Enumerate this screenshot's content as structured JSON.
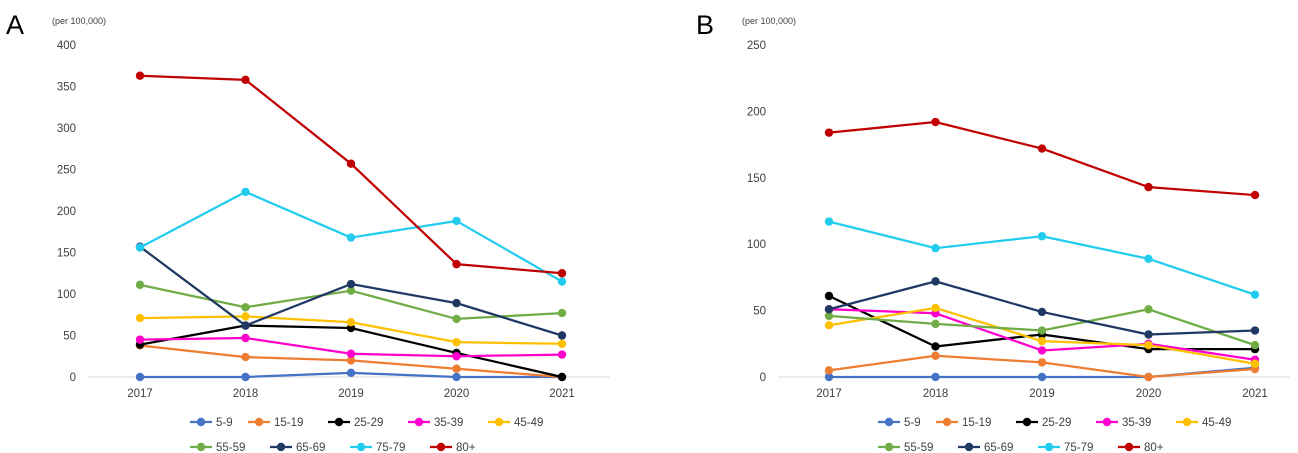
{
  "panels": [
    {
      "letter": "A",
      "unit_label": "(per 100,000)",
      "chart_data": {
        "type": "line",
        "title": "",
        "xlabel": "",
        "ylabel": "(per 100,000)",
        "categories": [
          "2017",
          "2018",
          "2019",
          "2020",
          "2021"
        ],
        "ylim": [
          0,
          400
        ],
        "yticks": [
          0,
          50,
          100,
          150,
          200,
          250,
          300,
          350,
          400
        ],
        "grid": false,
        "legend": "bottom",
        "series": [
          {
            "name": "5-9",
            "color": "#4472C4",
            "values": [
              0,
              0,
              5,
              0,
              0
            ]
          },
          {
            "name": "15-19",
            "color": "#ED7D31",
            "values": [
              38,
              24,
              20,
              10,
              0
            ]
          },
          {
            "name": "25-29",
            "color": "#000000",
            "values": [
              39,
              62,
              59,
              29,
              0
            ]
          },
          {
            "name": "35-39",
            "color": "#FF00CC",
            "values": [
              45,
              47,
              28,
              25,
              27
            ]
          },
          {
            "name": "45-49",
            "color": "#FFC000",
            "values": [
              71,
              73,
              66,
              42,
              40
            ]
          },
          {
            "name": "55-59",
            "color": "#70AD47",
            "values": [
              111,
              84,
              104,
              70,
              77
            ]
          },
          {
            "name": "65-69",
            "color": "#203864",
            "values": [
              157,
              62,
              112,
              89,
              50
            ]
          },
          {
            "name": "75-79",
            "color": "#22CCEE",
            "values": [
              156,
              223,
              168,
              188,
              115
            ]
          },
          {
            "name": "80+",
            "color": "#C00000",
            "values": [
              363,
              358,
              257,
              136,
              125
            ]
          }
        ]
      }
    },
    {
      "letter": "B",
      "unit_label": "(per 100,000)",
      "chart_data": {
        "type": "line",
        "title": "",
        "xlabel": "",
        "ylabel": "(per 100,000)",
        "categories": [
          "2017",
          "2018",
          "2019",
          "2020",
          "2021"
        ],
        "ylim": [
          0,
          250
        ],
        "yticks": [
          0,
          50,
          100,
          150,
          200,
          250
        ],
        "grid": false,
        "legend": "bottom",
        "series": [
          {
            "name": "5-9",
            "color": "#4472C4",
            "values": [
              0,
              0,
              0,
              0,
              7
            ]
          },
          {
            "name": "15-19",
            "color": "#ED7D31",
            "values": [
              5,
              16,
              11,
              0,
              6
            ]
          },
          {
            "name": "25-29",
            "color": "#000000",
            "values": [
              61,
              23,
              32,
              21,
              21
            ]
          },
          {
            "name": "35-39",
            "color": "#FF00CC",
            "values": [
              51,
              48,
              20,
              25,
              13
            ]
          },
          {
            "name": "45-49",
            "color": "#FFC000",
            "values": [
              39,
              52,
              27,
              24,
              10
            ]
          },
          {
            "name": "55-59",
            "color": "#70AD47",
            "values": [
              46,
              40,
              35,
              51,
              24
            ]
          },
          {
            "name": "65-69",
            "color": "#203864",
            "values": [
              51,
              72,
              49,
              32,
              35
            ]
          },
          {
            "name": "75-79",
            "color": "#22CCEE",
            "values": [
              117,
              97,
              106,
              89,
              62
            ]
          },
          {
            "name": "80+",
            "color": "#C00000",
            "values": [
              184,
              192,
              172,
              143,
              137
            ]
          }
        ]
      }
    }
  ]
}
